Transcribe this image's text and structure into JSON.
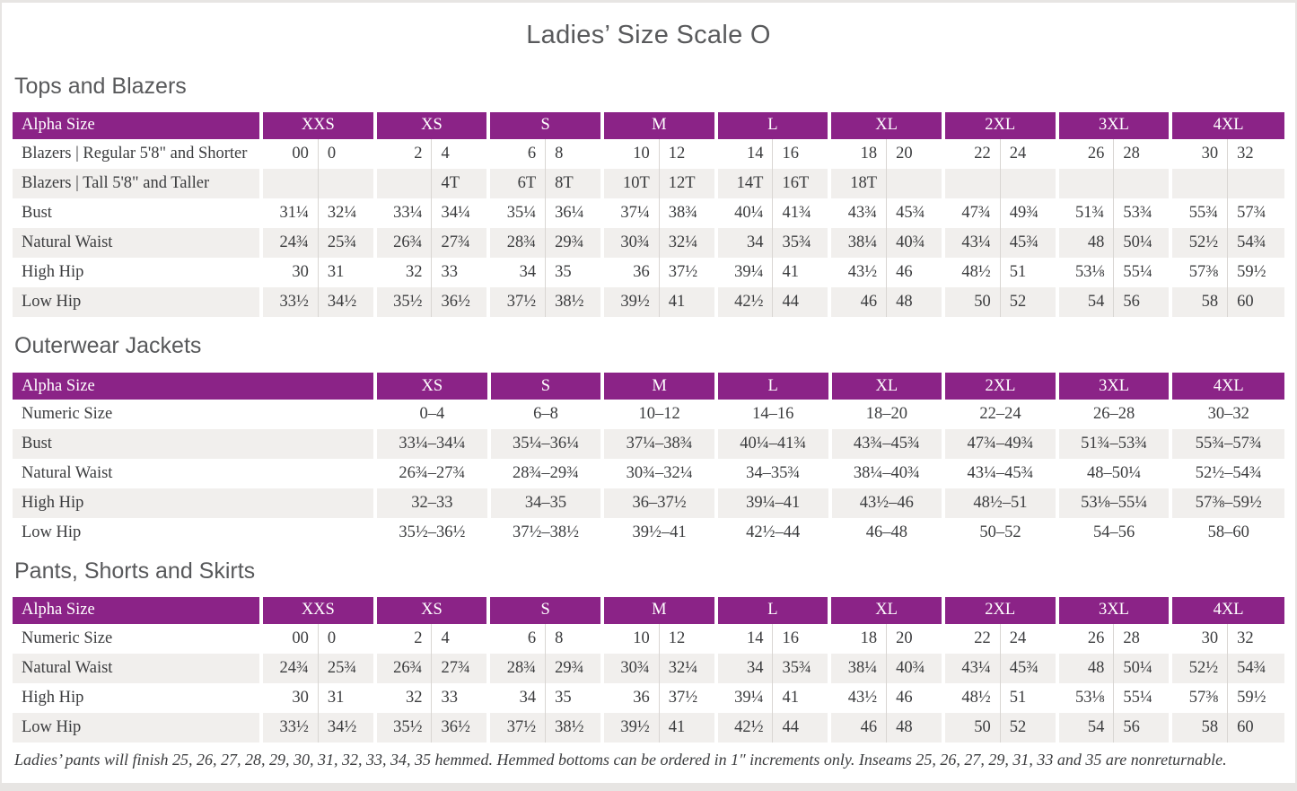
{
  "page": {
    "title": "Ladies’ Size Scale O",
    "footnote": "Ladies’ pants will finish 25, 26, 27, 28, 29, 30, 31, 32, 33, 34, 35 hemmed. Hemmed bottoms can be ordered in 1″ increments only. Inseams 25, 26, 27, 29, 31, 33 and 35 are nonreturnable."
  },
  "colors": {
    "header_purple": "#8B2387",
    "alt_row_gray": "#F1EFED",
    "heading_gray": "#58595B",
    "body_text": "#3B3C3E"
  },
  "tables": [
    {
      "section_title": "Tops and Blazers",
      "label_header": "Alpha Size",
      "paired": true,
      "sizes": [
        "XXS",
        "XS",
        "S",
        "M",
        "L",
        "XL",
        "2XL",
        "3XL",
        "4XL"
      ],
      "rows": [
        {
          "label": "Blazers  |  Regular 5'8\" and Shorter",
          "values": [
            "00",
            "0",
            "2",
            "4",
            "6",
            "8",
            "10",
            "12",
            "14",
            "16",
            "18",
            "20",
            "22",
            "24",
            "26",
            "28",
            "30",
            "32"
          ]
        },
        {
          "label": "Blazers  |  Tall 5'8\" and Taller",
          "values": [
            "",
            "",
            "",
            "4T",
            "6T",
            "8T",
            "10T",
            "12T",
            "14T",
            "16T",
            "18T",
            "",
            "",
            "",
            "",
            "",
            "",
            ""
          ]
        },
        {
          "label": "Bust",
          "values": [
            "31¼",
            "32¼",
            "33¼",
            "34¼",
            "35¼",
            "36¼",
            "37¼",
            "38¾",
            "40¼",
            "41¾",
            "43¾",
            "45¾",
            "47¾",
            "49¾",
            "51¾",
            "53¾",
            "55¾",
            "57¾"
          ]
        },
        {
          "label": "Natural Waist",
          "values": [
            "24¾",
            "25¾",
            "26¾",
            "27¾",
            "28¾",
            "29¾",
            "30¾",
            "32¼",
            "34",
            "35¾",
            "38¼",
            "40¾",
            "43¼",
            "45¾",
            "48",
            "50¼",
            "52½",
            "54¾"
          ]
        },
        {
          "label": "High Hip",
          "values": [
            "30",
            "31",
            "32",
            "33",
            "34",
            "35",
            "36",
            "37½",
            "39¼",
            "41",
            "43½",
            "46",
            "48½",
            "51",
            "53⅛",
            "55¼",
            "57⅜",
            "59½"
          ]
        },
        {
          "label": "Low Hip",
          "values": [
            "33½",
            "34½",
            "35½",
            "36½",
            "37½",
            "38½",
            "39½",
            "41",
            "42½",
            "44",
            "46",
            "48",
            "50",
            "52",
            "54",
            "56",
            "58",
            "60"
          ]
        }
      ]
    },
    {
      "section_title": "Outerwear Jackets",
      "label_header": "Alpha Size",
      "paired": false,
      "sizes": [
        "XS",
        "S",
        "M",
        "L",
        "XL",
        "2XL",
        "3XL",
        "4XL"
      ],
      "rows": [
        {
          "label": "Numeric Size",
          "values": [
            "0–4",
            "6–8",
            "10–12",
            "14–16",
            "18–20",
            "22–24",
            "26–28",
            "30–32"
          ]
        },
        {
          "label": "Bust",
          "values": [
            "33¼–34¼",
            "35¼–36¼",
            "37¼–38¾",
            "40¼–41¾",
            "43¾–45¾",
            "47¾–49¾",
            "51¾–53¾",
            "55¾–57¾"
          ]
        },
        {
          "label": "Natural Waist",
          "values": [
            "26¾–27¾",
            "28¾–29¾",
            "30¾–32¼",
            "34–35¾",
            "38¼–40¾",
            "43¼–45¾",
            "48–50¼",
            "52½–54¾"
          ]
        },
        {
          "label": "High Hip",
          "values": [
            "32–33",
            "34–35",
            "36–37½",
            "39¼–41",
            "43½–46",
            "48½–51",
            "53⅛–55¼",
            "57⅜–59½"
          ]
        },
        {
          "label": "Low Hip",
          "values": [
            "35½–36½",
            "37½–38½",
            "39½–41",
            "42½–44",
            "46–48",
            "50–52",
            "54–56",
            "58–60"
          ]
        }
      ]
    },
    {
      "section_title": "Pants, Shorts and Skirts",
      "label_header": "Alpha Size",
      "paired": true,
      "sizes": [
        "XXS",
        "XS",
        "S",
        "M",
        "L",
        "XL",
        "2XL",
        "3XL",
        "4XL"
      ],
      "rows": [
        {
          "label": "Numeric Size",
          "values": [
            "00",
            "0",
            "2",
            "4",
            "6",
            "8",
            "10",
            "12",
            "14",
            "16",
            "18",
            "20",
            "22",
            "24",
            "26",
            "28",
            "30",
            "32"
          ]
        },
        {
          "label": "Natural Waist",
          "values": [
            "24¾",
            "25¾",
            "26¾",
            "27¾",
            "28¾",
            "29¾",
            "30¾",
            "32¼",
            "34",
            "35¾",
            "38¼",
            "40¾",
            "43¼",
            "45¾",
            "48",
            "50¼",
            "52½",
            "54¾"
          ]
        },
        {
          "label": "High Hip",
          "values": [
            "30",
            "31",
            "32",
            "33",
            "34",
            "35",
            "36",
            "37½",
            "39¼",
            "41",
            "43½",
            "46",
            "48½",
            "51",
            "53⅛",
            "55¼",
            "57⅜",
            "59½"
          ]
        },
        {
          "label": "Low Hip",
          "values": [
            "33½",
            "34½",
            "35½",
            "36½",
            "37½",
            "38½",
            "39½",
            "41",
            "42½",
            "44",
            "46",
            "48",
            "50",
            "52",
            "54",
            "56",
            "58",
            "60"
          ]
        }
      ]
    }
  ]
}
